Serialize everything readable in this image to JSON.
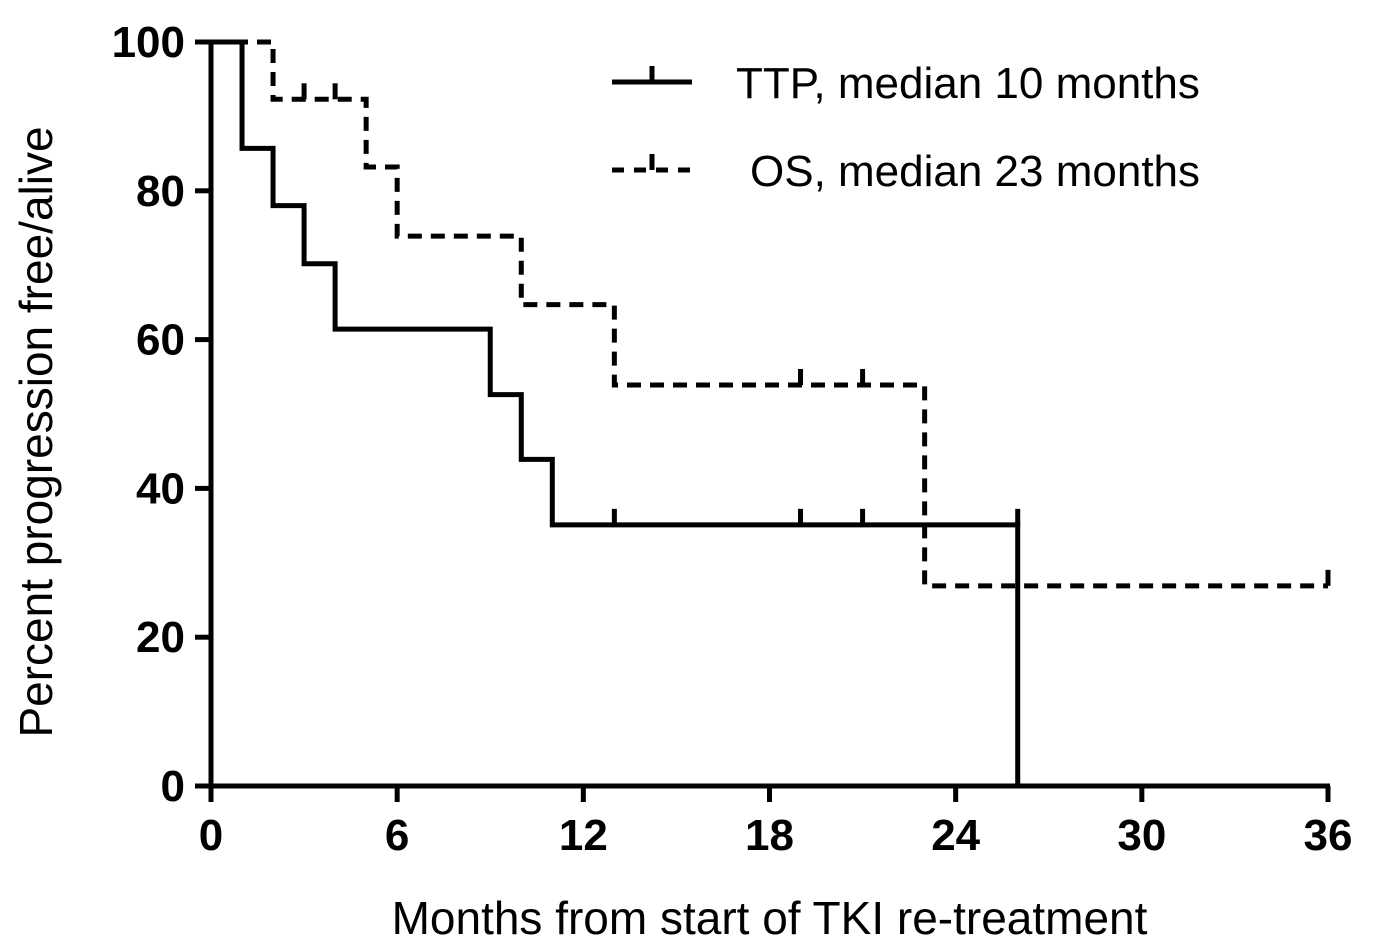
{
  "chart_data": {
    "type": "line",
    "step": true,
    "xlabel": "Months from start of TKI re-treatment",
    "ylabel": "Percent progression free/alive",
    "xlim": [
      0,
      36
    ],
    "ylim": [
      0,
      100
    ],
    "xticks": [
      0,
      6,
      12,
      18,
      24,
      30,
      36
    ],
    "yticks": [
      0,
      20,
      40,
      60,
      80,
      100
    ],
    "legend_position": "top-right",
    "series": [
      {
        "name": "TTP, median 10 months",
        "line_style": "solid",
        "color": "#000000",
        "steps": [
          [
            0,
            100
          ],
          [
            1,
            85.7
          ],
          [
            2,
            78
          ],
          [
            3,
            70.2
          ],
          [
            4,
            61.4
          ],
          [
            9,
            52.6
          ],
          [
            10,
            43.9
          ],
          [
            11,
            35.1
          ],
          [
            26,
            0
          ]
        ],
        "censored": [
          [
            13,
            35.1
          ],
          [
            19,
            35.1
          ],
          [
            21,
            35.1
          ],
          [
            26,
            35.1
          ]
        ]
      },
      {
        "name": "OS, median 23 months",
        "line_style": "dashed",
        "color": "#000000",
        "steps": [
          [
            0,
            100
          ],
          [
            2,
            92.3
          ],
          [
            5,
            83.2
          ],
          [
            6,
            73.9
          ],
          [
            10,
            64.7
          ],
          [
            13,
            53.9
          ],
          [
            23,
            26.9
          ]
        ],
        "end_x": 36,
        "censored": [
          [
            3,
            92.3
          ],
          [
            4,
            92.3
          ],
          [
            19,
            53.9
          ],
          [
            21,
            53.9
          ],
          [
            36,
            26.9
          ]
        ]
      }
    ]
  }
}
